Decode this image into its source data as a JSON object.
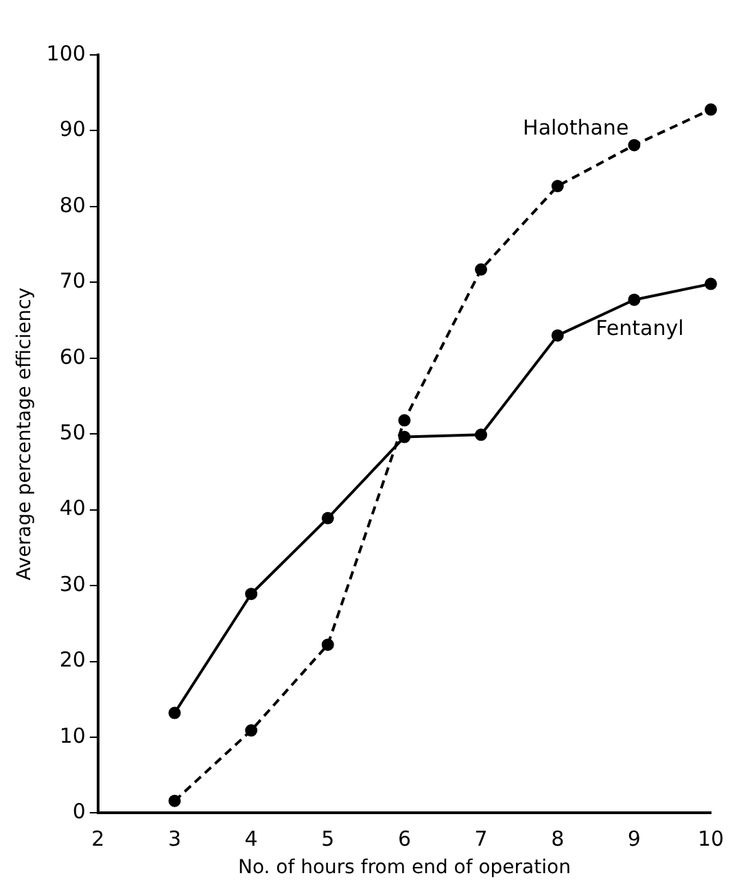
{
  "chart_data": {
    "type": "line",
    "xlabel": "No. of hours from end of operation",
    "ylabel": "Average percentage efficiency",
    "x": [
      3,
      4,
      5,
      6,
      7,
      8,
      9,
      10
    ],
    "series": [
      {
        "name": "Halothane",
        "color": "#000000",
        "line_style": "dashed",
        "values": [
          1.6,
          10.9,
          22.2,
          51.8,
          71.7,
          82.7,
          88.1,
          92.8
        ]
      },
      {
        "name": "Fentanyl",
        "color": "#000000",
        "line_style": "solid",
        "values": [
          13.2,
          28.9,
          38.9,
          49.6,
          49.9,
          63.0,
          67.7,
          69.8
        ]
      }
    ],
    "xlim": [
      2,
      10
    ],
    "xticks": [
      2,
      3,
      4,
      5,
      6,
      7,
      8,
      9,
      10
    ],
    "ylim": [
      0,
      100
    ],
    "yticks": [
      0,
      10,
      20,
      30,
      40,
      50,
      60,
      70,
      80,
      90,
      100
    ],
    "marker": "circle",
    "grid": false,
    "legend": false
  }
}
